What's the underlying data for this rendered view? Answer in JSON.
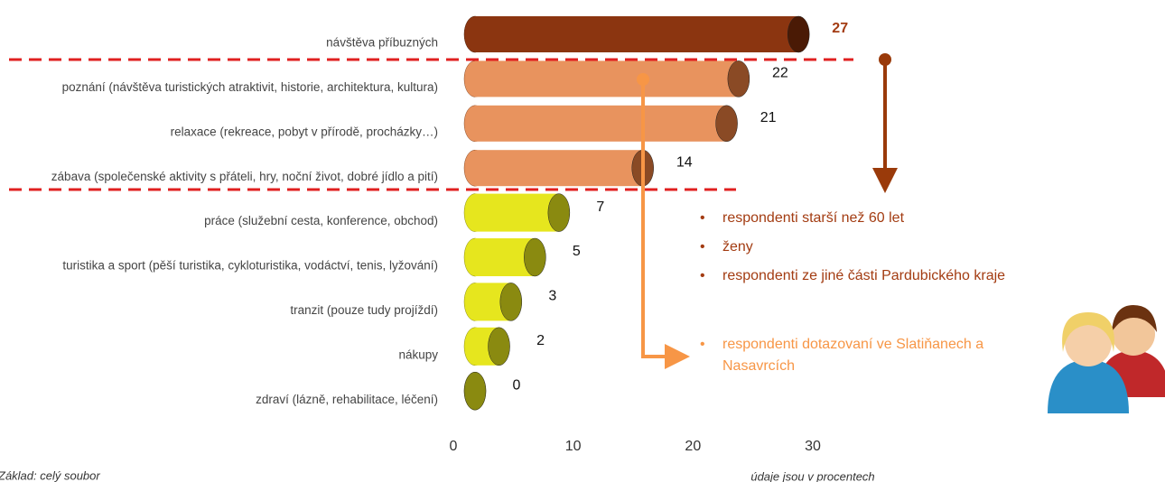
{
  "chart_data": {
    "type": "bar",
    "orientation": "horizontal",
    "categories": [
      "návštěva příbuzných",
      "poznání (návštěva turistických atraktivit, historie, architektura, kultura)",
      "relaxace (rekreace, pobyt v přírodě, procházky…)",
      "zábava (společenské aktivity s přáteli, hry, noční život, dobré jídlo a pití)",
      "práce (služební cesta, konference, obchod)",
      "turistika a sport (pěší turistika, cykloturistika, vodáctví, tenis, lyžování)",
      "tranzit (pouze tudy projíždí)",
      "nákupy",
      "zdraví (lázně, rehabilitace, léčení)"
    ],
    "values": [
      27,
      22,
      21,
      14,
      7,
      5,
      3,
      2,
      0
    ],
    "colors": [
      "#8b3510",
      "#e8935e",
      "#e8935e",
      "#e8935e",
      "#e6e61e",
      "#e6e61e",
      "#e6e61e",
      "#e6e61e",
      "#e6e61e"
    ],
    "cap_colors": [
      "#4a1a05",
      "#8a4a25",
      "#8a4a25",
      "#8a4a25",
      "#8a8a10",
      "#8a8a10",
      "#8a8a10",
      "#8a8a10",
      "#8a8a10"
    ],
    "xlim": [
      0,
      30
    ],
    "xticks": [
      0,
      10,
      20,
      30
    ],
    "annotations": [
      {
        "text": "respondenti starší než 60 let",
        "color": "#a33c12"
      },
      {
        "text": "ženy",
        "color": "#a33c12"
      },
      {
        "text": "respondenti ze jiné části Pardubického kraje",
        "color": "#a33c12"
      },
      {
        "text": "respondenti dotazovaní ve Slatiňanech a Nasavrcích",
        "color": "#f79646"
      }
    ],
    "x_label": "údaje jsou v procentech",
    "footnote": "Základ: celý soubor"
  }
}
